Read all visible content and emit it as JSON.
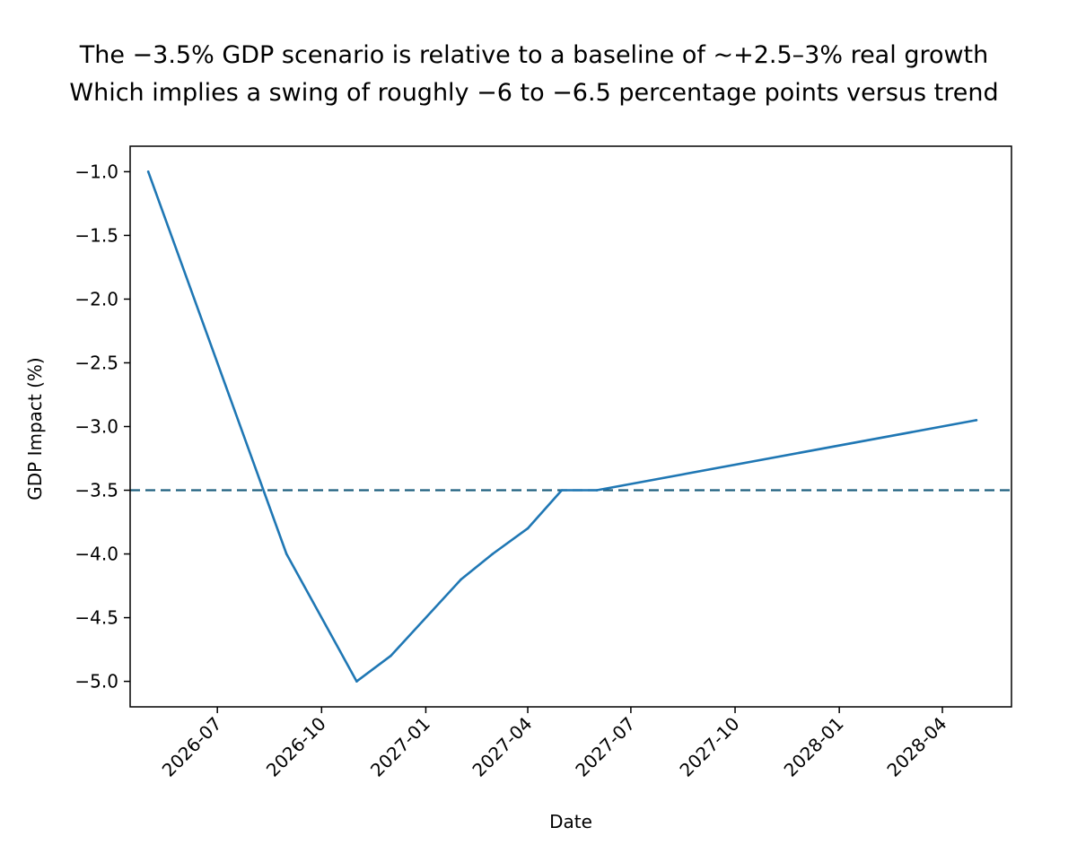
{
  "chart_data": {
    "type": "line",
    "title_lines": [
      "The −3.5% GDP scenario is relative to a baseline of ~+2.5–3% real growth",
      "Which implies a swing of roughly −6 to −6.5 percentage points versus trend"
    ],
    "xlabel": "Date",
    "ylabel": "GDP Impact (%)",
    "x_axis_type": "date",
    "xlim": [
      "2026-04-15",
      "2028-06-01"
    ],
    "ylim": [
      -5.2,
      -0.8
    ],
    "x_ticks": [
      "2026-07",
      "2026-10",
      "2027-01",
      "2027-04",
      "2027-07",
      "2027-10",
      "2028-01",
      "2028-04"
    ],
    "y_ticks": [
      -1.0,
      -1.5,
      -2.0,
      -2.5,
      -3.0,
      -3.5,
      -4.0,
      -4.5,
      -5.0
    ],
    "y_tick_labels": [
      "−1.0",
      "−1.5",
      "−2.0",
      "−2.5",
      "−3.0",
      "−3.5",
      "−4.0",
      "−4.5",
      "−5.0"
    ],
    "grid": false,
    "series": [
      {
        "color": "#1f77b4",
        "points": [
          {
            "x": "2026-05-01",
            "y": -1.0
          },
          {
            "x": "2026-08-31",
            "y": -4.0
          },
          {
            "x": "2026-11-01",
            "y": -5.0
          },
          {
            "x": "2026-12-01",
            "y": -4.8
          },
          {
            "x": "2027-02-01",
            "y": -4.2
          },
          {
            "x": "2027-03-01",
            "y": -4.0
          },
          {
            "x": "2027-04-01",
            "y": -3.8
          },
          {
            "x": "2027-05-01",
            "y": -3.5
          },
          {
            "x": "2027-06-01",
            "y": -3.5
          },
          {
            "x": "2028-05-01",
            "y": -2.95
          }
        ]
      }
    ],
    "reference_lines": [
      {
        "y": -3.5,
        "style": "dashed",
        "color": "#1f5f7f"
      }
    ]
  }
}
